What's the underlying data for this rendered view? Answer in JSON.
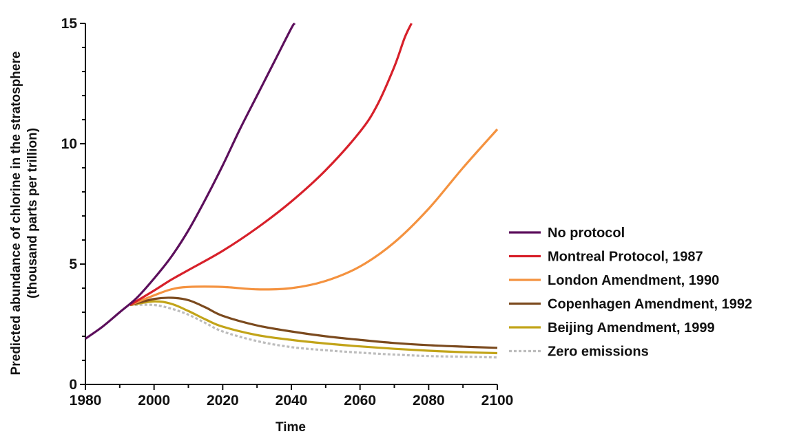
{
  "chart_data": {
    "type": "line",
    "title": "",
    "xlabel": "Time",
    "ylabel_line1": "Predicted abundance of chlorine in the stratosphere",
    "ylabel_line2": "(thousand parts per trillion)",
    "xlim": [
      1980,
      2100
    ],
    "ylim": [
      0,
      15
    ],
    "x_ticks": [
      1980,
      2000,
      2020,
      2040,
      2060,
      2080,
      2100
    ],
    "y_ticks": [
      0,
      5,
      10,
      15
    ],
    "grid": false,
    "legend_position": "right",
    "series": [
      {
        "name": "No protocol",
        "color": "#5c0f5c",
        "style": "solid",
        "points": [
          [
            1980,
            1.9
          ],
          [
            1985,
            2.4
          ],
          [
            1990,
            3.0
          ],
          [
            1995,
            3.6
          ],
          [
            2000,
            4.4
          ],
          [
            2005,
            5.3
          ],
          [
            2010,
            6.4
          ],
          [
            2015,
            7.7
          ],
          [
            2020,
            9.1
          ],
          [
            2025,
            10.6
          ],
          [
            2030,
            12.0
          ],
          [
            2035,
            13.4
          ],
          [
            2040,
            14.8
          ],
          [
            2041,
            15.0
          ]
        ]
      },
      {
        "name": "Montreal Protocol, 1987",
        "color": "#d7202a",
        "style": "solid",
        "points": [
          [
            1993,
            3.3
          ],
          [
            2000,
            3.9
          ],
          [
            2005,
            4.35
          ],
          [
            2010,
            4.75
          ],
          [
            2020,
            5.55
          ],
          [
            2030,
            6.5
          ],
          [
            2040,
            7.6
          ],
          [
            2050,
            8.9
          ],
          [
            2060,
            10.5
          ],
          [
            2065,
            11.6
          ],
          [
            2070,
            13.2
          ],
          [
            2073,
            14.4
          ],
          [
            2075,
            15.0
          ]
        ]
      },
      {
        "name": "London Amendment, 1990",
        "color": "#f4923f",
        "style": "solid",
        "points": [
          [
            1993,
            3.3
          ],
          [
            2000,
            3.7
          ],
          [
            2005,
            3.95
          ],
          [
            2010,
            4.05
          ],
          [
            2020,
            4.05
          ],
          [
            2030,
            3.95
          ],
          [
            2040,
            4.0
          ],
          [
            2050,
            4.3
          ],
          [
            2060,
            4.9
          ],
          [
            2070,
            5.9
          ],
          [
            2080,
            7.3
          ],
          [
            2090,
            9.0
          ],
          [
            2100,
            10.6
          ]
        ]
      },
      {
        "name": "Copenhagen Amendment, 1992",
        "color": "#7b4a1e",
        "style": "solid",
        "points": [
          [
            1993,
            3.3
          ],
          [
            2000,
            3.55
          ],
          [
            2005,
            3.6
          ],
          [
            2010,
            3.5
          ],
          [
            2015,
            3.2
          ],
          [
            2020,
            2.85
          ],
          [
            2030,
            2.45
          ],
          [
            2040,
            2.2
          ],
          [
            2050,
            2.0
          ],
          [
            2060,
            1.85
          ],
          [
            2070,
            1.72
          ],
          [
            2080,
            1.63
          ],
          [
            2090,
            1.57
          ],
          [
            2100,
            1.52
          ]
        ]
      },
      {
        "name": "Beijing Amendment, 1999",
        "color": "#c2a419",
        "style": "solid",
        "points": [
          [
            1993,
            3.3
          ],
          [
            2000,
            3.45
          ],
          [
            2005,
            3.35
          ],
          [
            2010,
            3.05
          ],
          [
            2015,
            2.7
          ],
          [
            2020,
            2.4
          ],
          [
            2030,
            2.05
          ],
          [
            2040,
            1.85
          ],
          [
            2050,
            1.7
          ],
          [
            2060,
            1.58
          ],
          [
            2070,
            1.48
          ],
          [
            2080,
            1.4
          ],
          [
            2090,
            1.34
          ],
          [
            2100,
            1.3
          ]
        ]
      },
      {
        "name": "Zero emissions",
        "color": "#bdbdbd",
        "style": "dotted",
        "points": [
          [
            1993,
            3.3
          ],
          [
            2000,
            3.3
          ],
          [
            2005,
            3.15
          ],
          [
            2010,
            2.9
          ],
          [
            2015,
            2.55
          ],
          [
            2020,
            2.2
          ],
          [
            2030,
            1.8
          ],
          [
            2040,
            1.55
          ],
          [
            2050,
            1.42
          ],
          [
            2060,
            1.32
          ],
          [
            2070,
            1.24
          ],
          [
            2080,
            1.18
          ],
          [
            2090,
            1.15
          ],
          [
            2100,
            1.12
          ]
        ]
      }
    ]
  }
}
